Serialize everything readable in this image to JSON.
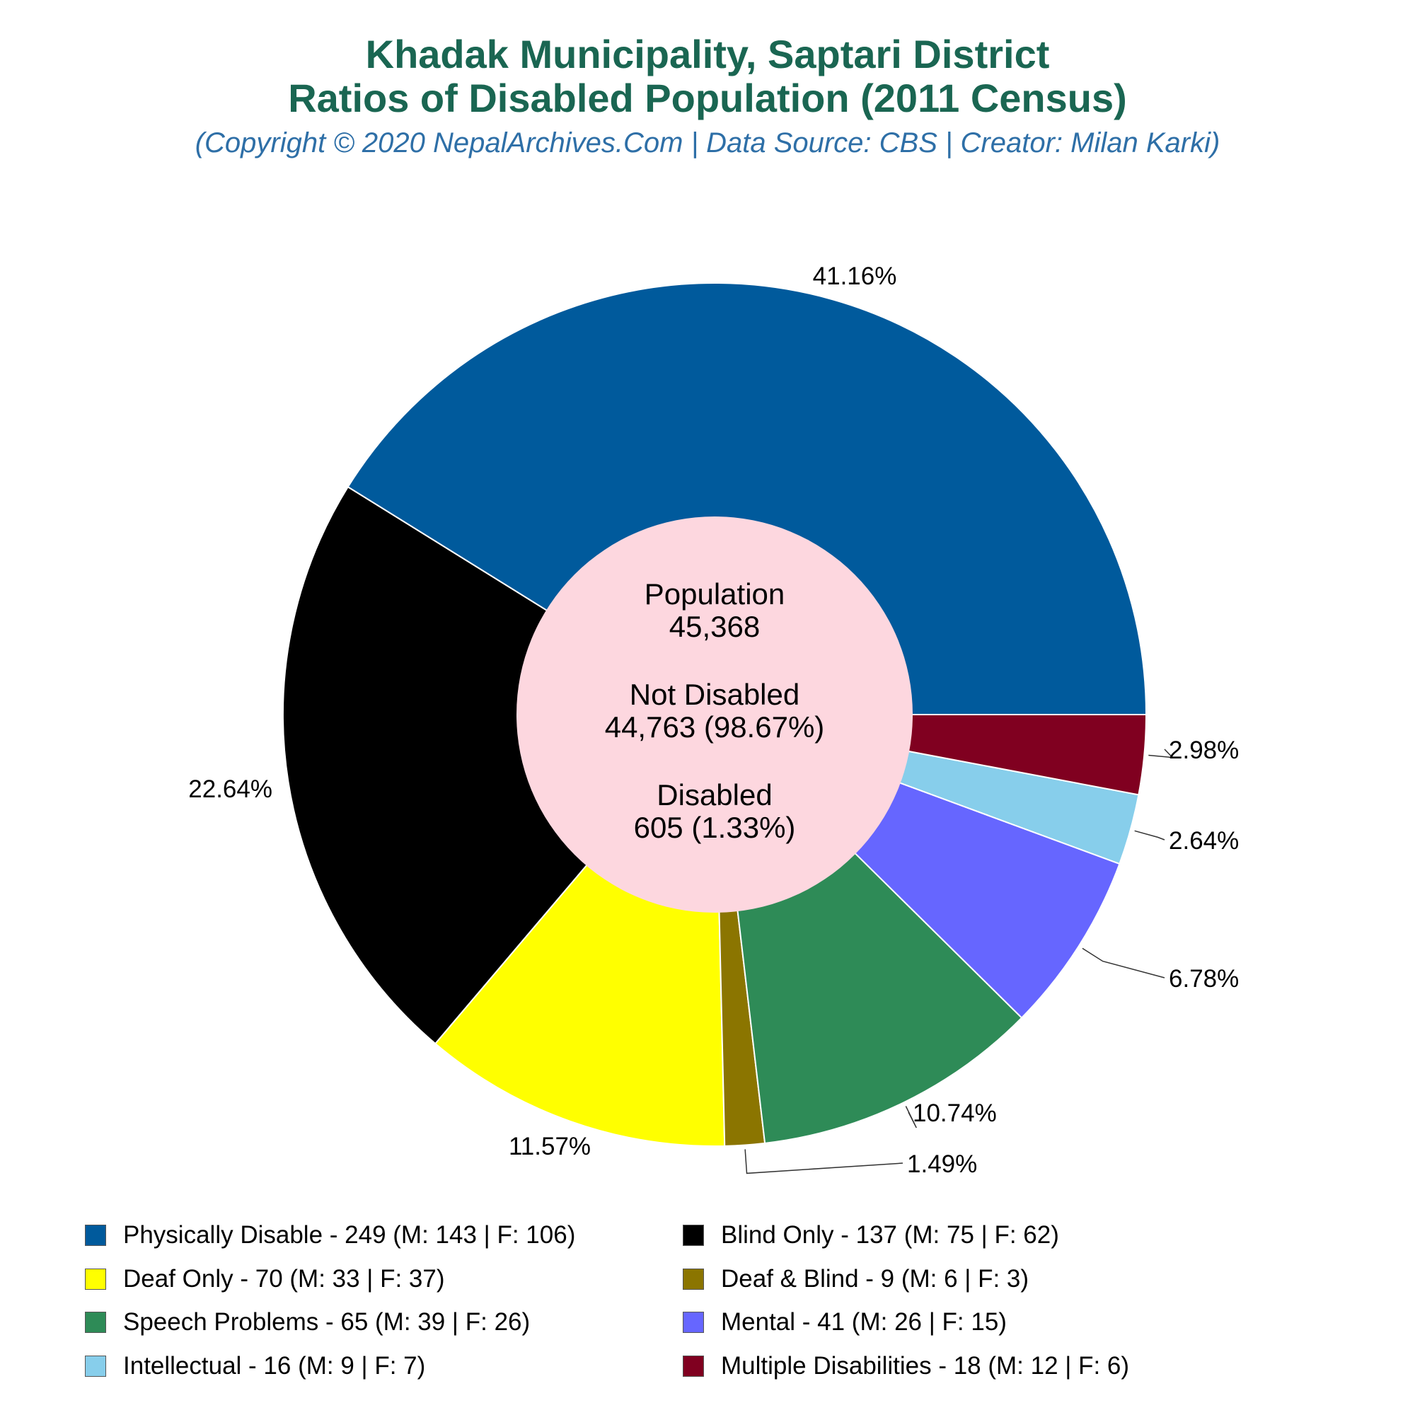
{
  "title_line1": "Khadak Municipality, Saptari District",
  "title_line2": "Ratios of Disabled Population (2011 Census)",
  "subtitle": "(Copyright © 2020 NepalArchives.Com | Data Source: CBS | Creator: Milan Karki)",
  "center": {
    "population_label": "Population",
    "population_value": "45,368",
    "not_disabled_label": "Not Disabled",
    "not_disabled_value": "44,763 (98.67%)",
    "disabled_label": "Disabled",
    "disabled_value": "605 (1.33%)"
  },
  "chart_data": {
    "type": "pie",
    "categories": [
      "Physically Disable",
      "Blind Only",
      "Deaf Only",
      "Deaf & Blind",
      "Speech Problems",
      "Mental",
      "Intellectual",
      "Multiple Disabilities"
    ],
    "values": [
      249,
      137,
      70,
      9,
      65,
      41,
      16,
      18
    ],
    "percent_labels": [
      "41.16%",
      "22.64%",
      "11.57%",
      "1.49%",
      "10.74%",
      "6.78%",
      "2.64%",
      "2.98%"
    ],
    "colors": [
      "#005a9c",
      "#000000",
      "#ffff00",
      "#8b7500",
      "#2e8b57",
      "#6666ff",
      "#87ceeb",
      "#800020"
    ],
    "center_hole_color": "#fdd7df",
    "legend_entries": [
      "Physically Disable - 249 (M: 143 | F: 106)",
      "Blind Only - 137 (M: 75 | F: 62)",
      "Deaf Only - 70 (M: 33 | F: 37)",
      "Deaf & Blind - 9 (M: 6 | F: 3)",
      "Speech Problems - 65 (M: 39 | F: 26)",
      "Mental - 41 (M: 26 | F: 15)",
      "Intellectual - 16 (M: 9 | F: 7)",
      "Multiple Disabilities - 18 (M: 12 | F: 6)"
    ],
    "legend_placement": "bottom"
  }
}
